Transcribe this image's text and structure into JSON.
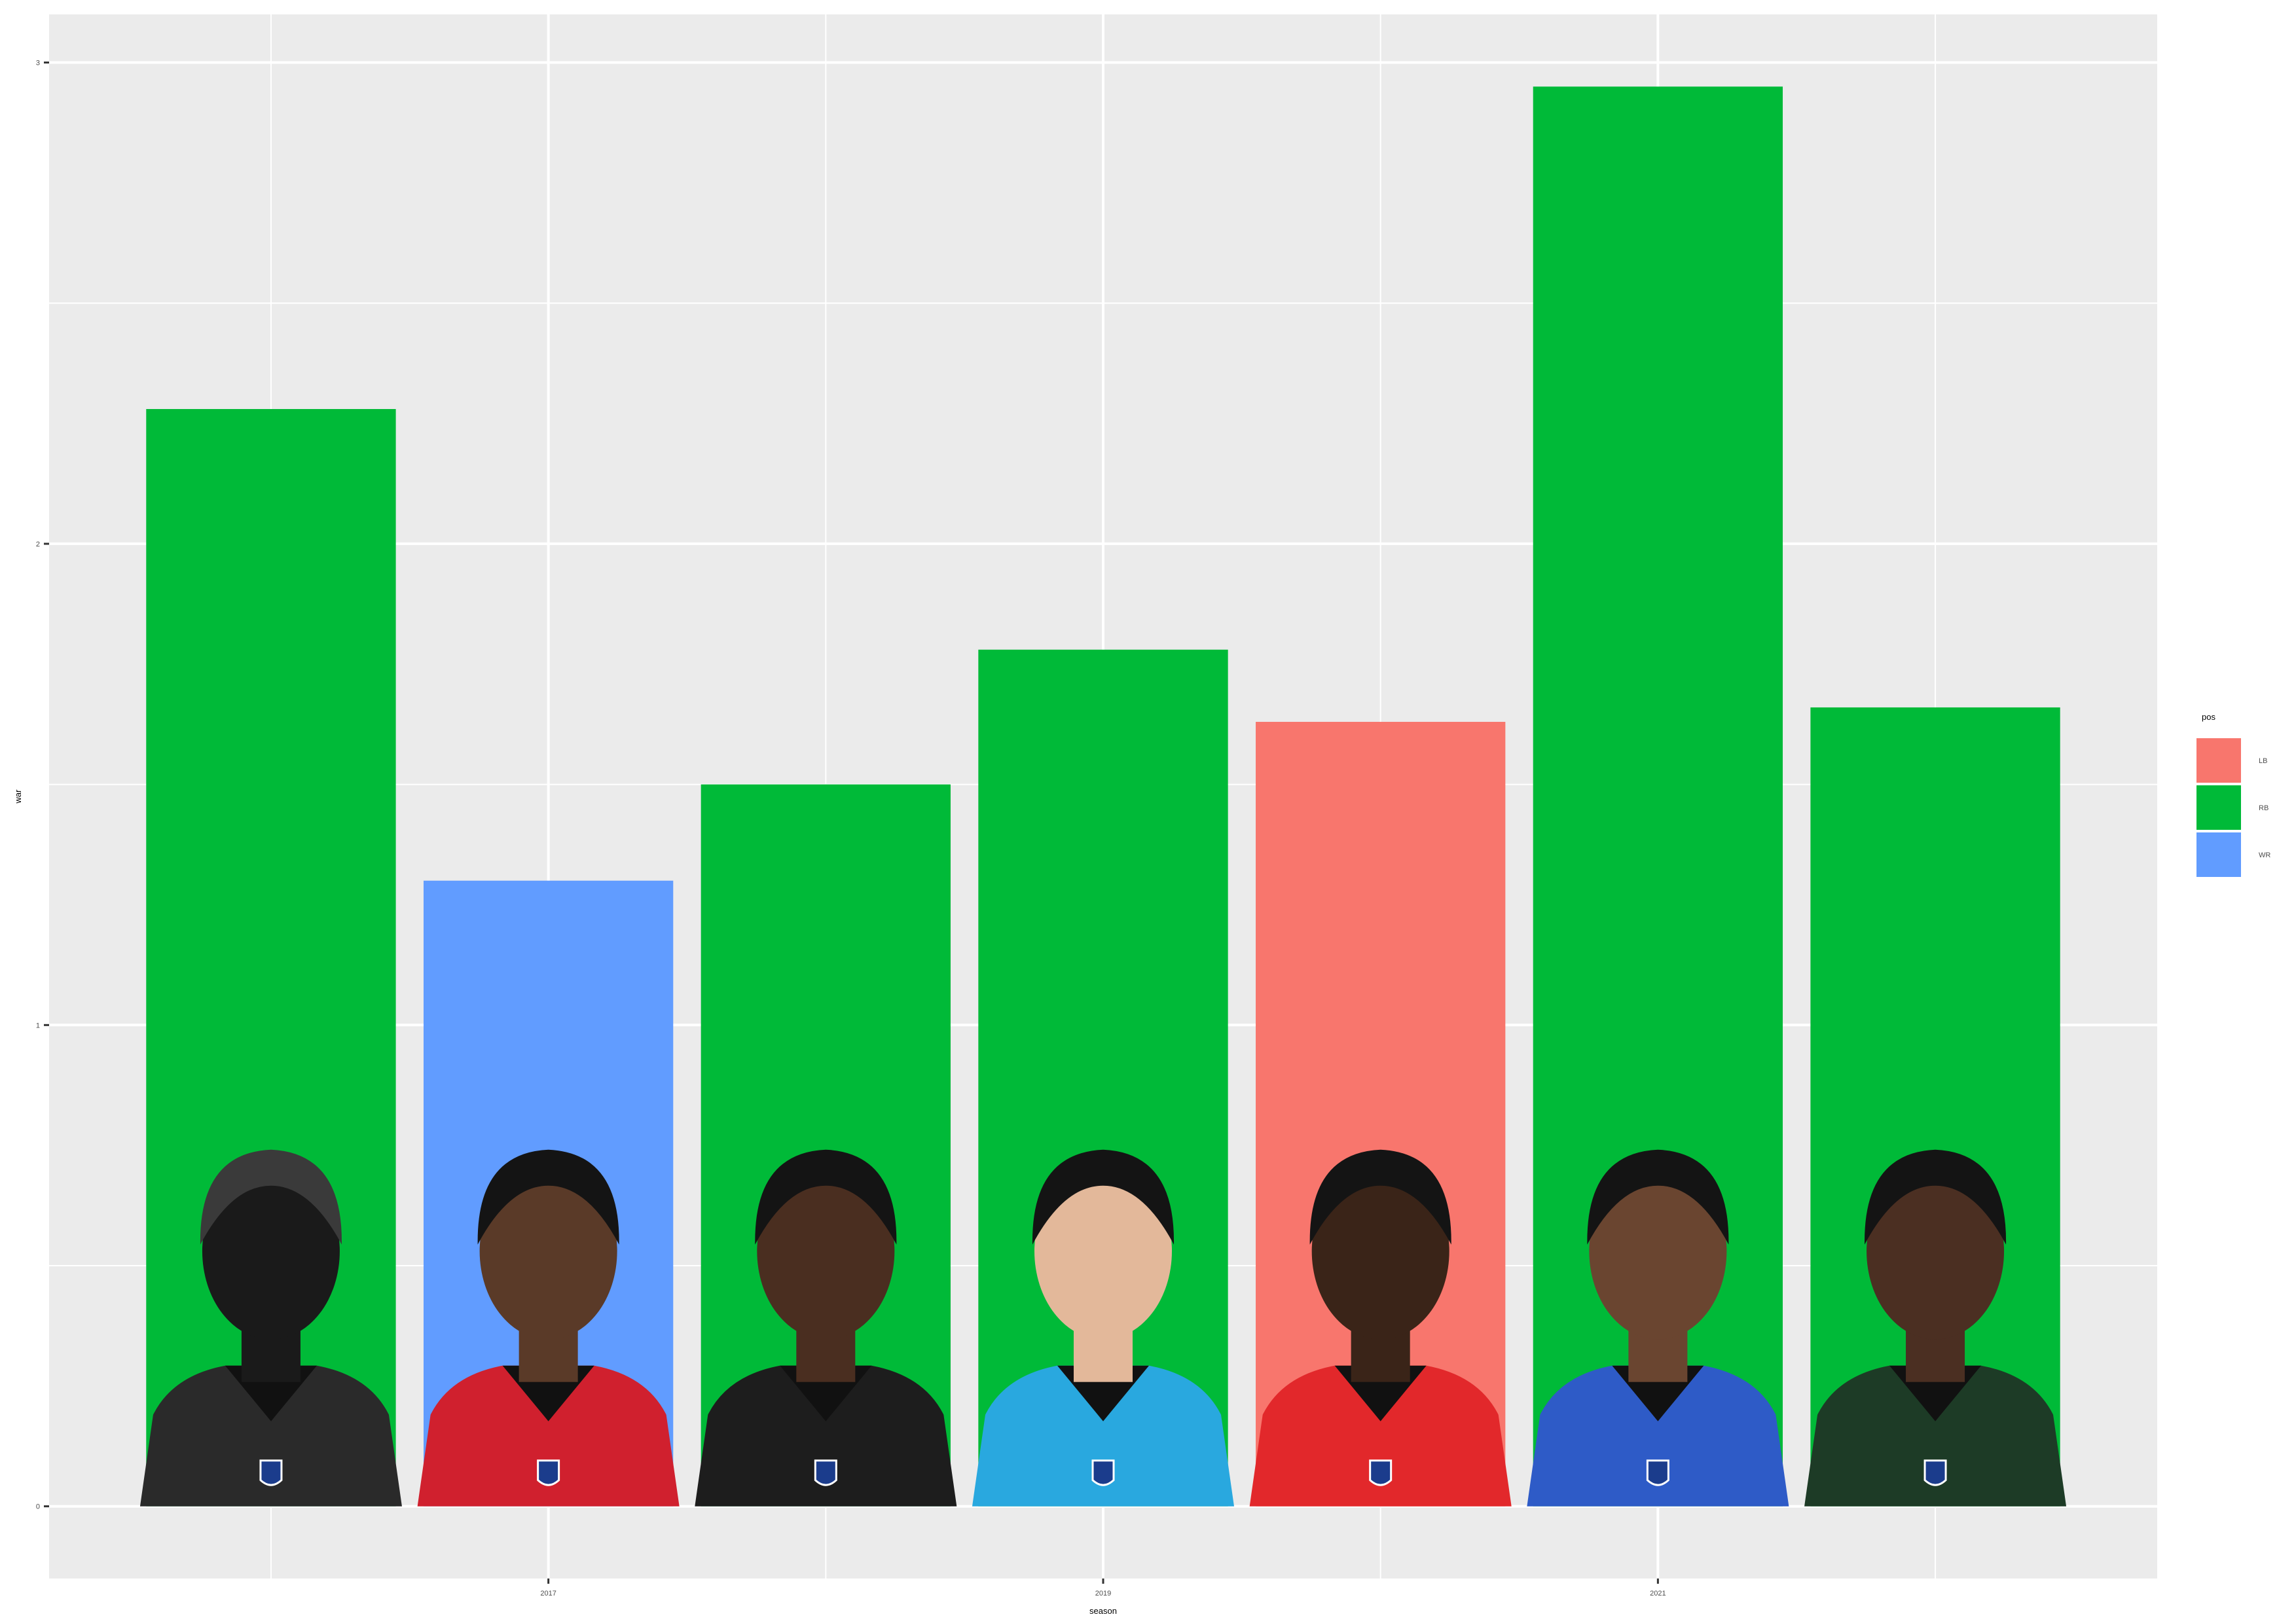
{
  "chart_data": {
    "type": "bar",
    "xlabel": "season",
    "ylabel": "war",
    "x": [
      2016,
      2017,
      2018,
      2019,
      2020,
      2021,
      2022
    ],
    "values": [
      2.28,
      1.3,
      1.5,
      1.78,
      1.63,
      2.95,
      1.66
    ],
    "pos": [
      "RB",
      "WR",
      "RB",
      "RB",
      "LB",
      "RB",
      "RB"
    ],
    "x_ticks": [
      2017,
      2019,
      2021
    ],
    "y_ticks": [
      0,
      1,
      2,
      3
    ],
    "xlim": [
      2015.2,
      2022.8
    ],
    "ylim": [
      -0.15,
      3.1
    ],
    "grid": true,
    "legend": {
      "title": "pos",
      "placement": "right",
      "entries": [
        {
          "label": "LB",
          "color": "#F8766D"
        },
        {
          "label": "RB",
          "color": "#00BA38"
        },
        {
          "label": "WR",
          "color": "#619CFF"
        }
      ]
    },
    "colors": {
      "LB": "#F8766D",
      "RB": "#00BA38",
      "WR": "#619CFF"
    },
    "player_photos": [
      "helmet-silhouette-icon",
      "player-headshot",
      "player-headshot",
      "player-headshot",
      "player-headshot",
      "player-headshot",
      "player-headshot"
    ]
  }
}
